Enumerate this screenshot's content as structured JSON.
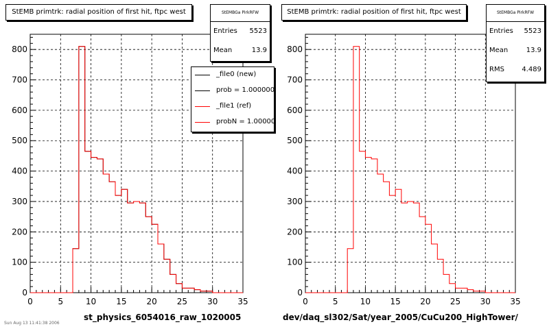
{
  "chart_data": [
    {
      "type": "bar",
      "title": "StEMB primtrk: radial position of first hit, ftpc west",
      "xlabel": "st_physics_6054016_raw_1020005",
      "ylabel": "",
      "xlim": [
        0,
        35
      ],
      "ylim": [
        0,
        850
      ],
      "x_ticks": [
        0,
        5,
        10,
        15,
        20,
        25,
        30,
        35
      ],
      "y_ticks": [
        0,
        100,
        200,
        300,
        400,
        500,
        600,
        700,
        800
      ],
      "grid": true,
      "bin_width": 1,
      "bin_low_edges": [
        7,
        8,
        9,
        10,
        11,
        12,
        13,
        14,
        15,
        16,
        17,
        18,
        19,
        20,
        21,
        22,
        23,
        24,
        25,
        26,
        27,
        28,
        29
      ],
      "series": [
        {
          "name": "_file0 (new)",
          "color": "#000000",
          "values": [
            145,
            810,
            465,
            445,
            440,
            390,
            365,
            320,
            340,
            295,
            300,
            295,
            250,
            225,
            160,
            110,
            60,
            30,
            15,
            15,
            10,
            5,
            5
          ]
        },
        {
          "name": "_file1 (ref)",
          "color": "#ff0000",
          "values": [
            145,
            810,
            465,
            445,
            440,
            390,
            365,
            320,
            340,
            295,
            300,
            295,
            250,
            225,
            160,
            110,
            60,
            30,
            15,
            15,
            10,
            5,
            5
          ]
        }
      ],
      "stats": {
        "header": "StEMBGa PirkRFW",
        "entries_label": "Entries",
        "entries": "5523",
        "mean_label": "Mean",
        "mean": "13.9"
      },
      "legend": {
        "position": "top-right",
        "entries": [
          {
            "label": "_file0 (new)",
            "color": "#000000"
          },
          {
            "label": "prob = 1.000000",
            "color": "#000000"
          },
          {
            "label": "_file1 (ref)",
            "color": "#ff0000"
          },
          {
            "label": "probN = 1.000000",
            "color": "#ff0000"
          }
        ]
      }
    },
    {
      "type": "bar",
      "title": "StEMB primtrk: radial position of first hit, ftpc west",
      "xlabel": "dev/daq_sl302/Sat/year_2005/CuCu200_HighTower/",
      "ylabel": "",
      "xlim": [
        0,
        35
      ],
      "ylim": [
        0,
        850
      ],
      "x_ticks": [
        0,
        5,
        10,
        15,
        20,
        25,
        30,
        35
      ],
      "y_ticks": [
        0,
        100,
        200,
        300,
        400,
        500,
        600,
        700,
        800
      ],
      "grid": true,
      "bin_width": 1,
      "bin_low_edges": [
        7,
        8,
        9,
        10,
        11,
        12,
        13,
        14,
        15,
        16,
        17,
        18,
        19,
        20,
        21,
        22,
        23,
        24,
        25,
        26,
        27,
        28,
        29
      ],
      "series": [
        {
          "name": "",
          "color": "#ff0000",
          "values": [
            145,
            810,
            465,
            445,
            440,
            390,
            365,
            320,
            340,
            295,
            300,
            295,
            250,
            225,
            160,
            110,
            60,
            30,
            15,
            15,
            10,
            5,
            5
          ]
        }
      ],
      "stats": {
        "header": "StEMBGa PirkRFW",
        "entries_label": "Entries",
        "entries": "5523",
        "mean_label": "Mean",
        "mean": "13.9",
        "rms_label": "RMS",
        "rms": "4.489"
      }
    }
  ],
  "footer_text": "Sun Aug 13 11:41:38 2006"
}
